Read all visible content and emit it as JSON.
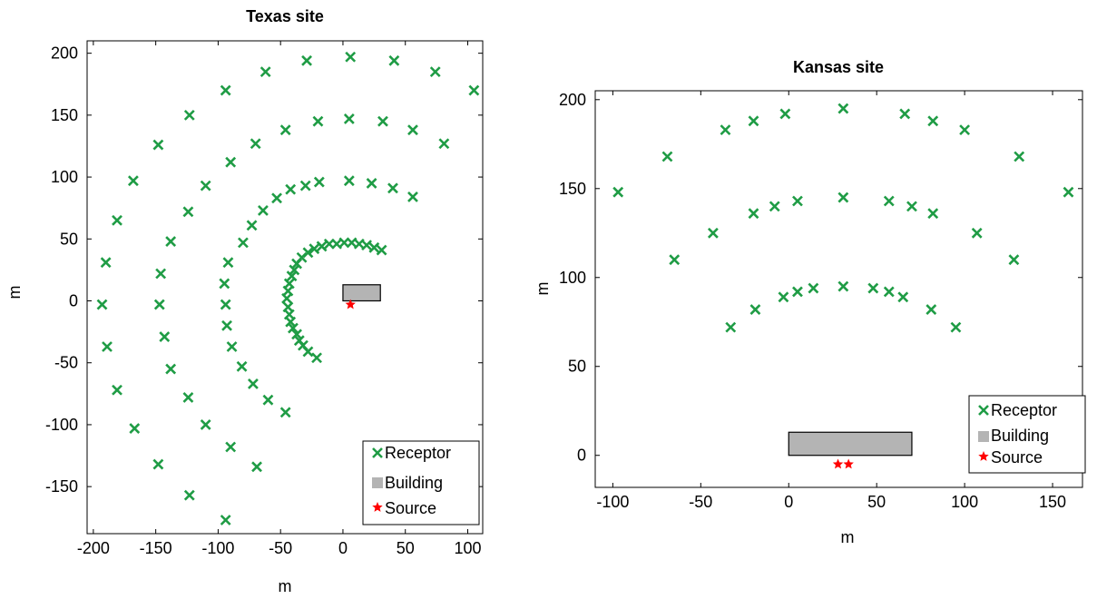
{
  "colors": {
    "receptor": "#1f9c45",
    "building_fill": "#b4b4b4",
    "building_stroke": "#000000",
    "source": "#ff0000"
  },
  "chart_data": [
    {
      "type": "scatter",
      "title": "Texas site",
      "xlabel": "m",
      "ylabel": "m",
      "xlim": [
        -205,
        112
      ],
      "ylim": [
        -188,
        210
      ],
      "xticks": [
        -200,
        -150,
        -100,
        -50,
        0,
        50,
        100
      ],
      "yticks": [
        -150,
        -100,
        -50,
        0,
        50,
        100,
        150,
        200
      ],
      "xtick_labels": [
        "-200",
        "-150",
        "-100",
        "-50",
        "0",
        "50",
        "100"
      ],
      "ytick_labels": [
        "-150",
        "-100",
        "-50",
        "0",
        "50",
        "100",
        "150",
        "200"
      ],
      "legend": {
        "placement": "bottom-right",
        "entries": [
          {
            "key": "receptor",
            "label": "Receptor"
          },
          {
            "key": "building",
            "label": "Building"
          },
          {
            "key": "source",
            "label": "Source"
          }
        ]
      },
      "building": {
        "x0": 0,
        "x1": 30,
        "y0": 0,
        "y1": 13
      },
      "sources": [
        [
          6,
          -3
        ]
      ],
      "receptors": [
        [
          -45,
          2
        ],
        [
          -44,
          8
        ],
        [
          -43,
          14
        ],
        [
          -41,
          20
        ],
        [
          -39,
          25
        ],
        [
          -37,
          30
        ],
        [
          -33,
          35
        ],
        [
          -28,
          39
        ],
        [
          -23,
          42
        ],
        [
          -17,
          44
        ],
        [
          -11,
          46
        ],
        [
          -5,
          46
        ],
        [
          1,
          47
        ],
        [
          7,
          47
        ],
        [
          13,
          46
        ],
        [
          19,
          45
        ],
        [
          25,
          43
        ],
        [
          31,
          41
        ],
        [
          -44,
          -5
        ],
        [
          -43,
          -11
        ],
        [
          -42,
          -17
        ],
        [
          -40,
          -22
        ],
        [
          -37,
          -27
        ],
        [
          -35,
          -32
        ],
        [
          -32,
          -36
        ],
        [
          -28,
          -41
        ],
        [
          -21,
          -46
        ],
        [
          -95,
          14
        ],
        [
          -94,
          -3
        ],
        [
          -93,
          -20
        ],
        [
          -92,
          31
        ],
        [
          -89,
          -37
        ],
        [
          -80,
          47
        ],
        [
          -81,
          -53
        ],
        [
          -73,
          61
        ],
        [
          -72,
          -67
        ],
        [
          -64,
          73
        ],
        [
          -60,
          -80
        ],
        [
          -53,
          83
        ],
        [
          -46,
          -90
        ],
        [
          -42,
          90
        ],
        [
          -30,
          93
        ],
        [
          -19,
          96
        ],
        [
          5,
          97
        ],
        [
          23,
          95
        ],
        [
          40,
          91
        ],
        [
          56,
          84
        ],
        [
          -146,
          22
        ],
        [
          -147,
          -3
        ],
        [
          -138,
          48
        ],
        [
          -143,
          -29
        ],
        [
          -124,
          72
        ],
        [
          -138,
          -55
        ],
        [
          -110,
          93
        ],
        [
          -124,
          -78
        ],
        [
          -90,
          112
        ],
        [
          -110,
          -100
        ],
        [
          -70,
          127
        ],
        [
          -90,
          -118
        ],
        [
          -46,
          138
        ],
        [
          -69,
          -134
        ],
        [
          -20,
          145
        ],
        [
          5,
          147
        ],
        [
          32,
          145
        ],
        [
          56,
          138
        ],
        [
          81,
          127
        ],
        [
          -193,
          -3
        ],
        [
          -190,
          31
        ],
        [
          -189,
          -37
        ],
        [
          -181,
          65
        ],
        [
          -181,
          -72
        ],
        [
          -168,
          97
        ],
        [
          -167,
          -103
        ],
        [
          -148,
          126
        ],
        [
          -148,
          -132
        ],
        [
          -123,
          150
        ],
        [
          -123,
          -157
        ],
        [
          -94,
          170
        ],
        [
          -94,
          -177
        ],
        [
          -62,
          185
        ],
        [
          -29,
          194
        ],
        [
          6,
          197
        ],
        [
          41,
          194
        ],
        [
          74,
          185
        ],
        [
          105,
          170
        ]
      ]
    },
    {
      "type": "scatter",
      "title": "Kansas site",
      "xlabel": "m",
      "ylabel": "m",
      "xlim": [
        -110,
        167
      ],
      "ylim": [
        -18,
        205
      ],
      "xticks": [
        -100,
        -50,
        0,
        50,
        100,
        150
      ],
      "yticks": [
        0,
        50,
        100,
        150,
        200
      ],
      "xtick_labels": [
        "-100",
        "-50",
        "0",
        "50",
        "100",
        "150"
      ],
      "ytick_labels": [
        "0",
        "50",
        "100",
        "150",
        "200"
      ],
      "legend": {
        "placement": "bottom-right",
        "entries": [
          {
            "key": "receptor",
            "label": "Receptor"
          },
          {
            "key": "building",
            "label": "Building"
          },
          {
            "key": "source",
            "label": "Source"
          }
        ]
      },
      "building": {
        "x0": 0,
        "x1": 70,
        "y0": 0,
        "y1": 13
      },
      "sources": [
        [
          28,
          -5
        ],
        [
          34,
          -5
        ]
      ],
      "receptors": [
        [
          -97,
          148
        ],
        [
          -69,
          168
        ],
        [
          -36,
          183
        ],
        [
          -20,
          188
        ],
        [
          -2,
          192
        ],
        [
          31,
          195
        ],
        [
          66,
          192
        ],
        [
          82,
          188
        ],
        [
          100,
          183
        ],
        [
          131,
          168
        ],
        [
          159,
          148
        ],
        [
          -65,
          110
        ],
        [
          -43,
          125
        ],
        [
          -20,
          136
        ],
        [
          -8,
          140
        ],
        [
          5,
          143
        ],
        [
          31,
          145
        ],
        [
          57,
          143
        ],
        [
          70,
          140
        ],
        [
          82,
          136
        ],
        [
          107,
          125
        ],
        [
          128,
          110
        ],
        [
          -33,
          72
        ],
        [
          -19,
          82
        ],
        [
          -3,
          89
        ],
        [
          5,
          92
        ],
        [
          14,
          94
        ],
        [
          31,
          95
        ],
        [
          48,
          94
        ],
        [
          57,
          92
        ],
        [
          65,
          89
        ],
        [
          81,
          82
        ],
        [
          95,
          72
        ]
      ]
    }
  ]
}
